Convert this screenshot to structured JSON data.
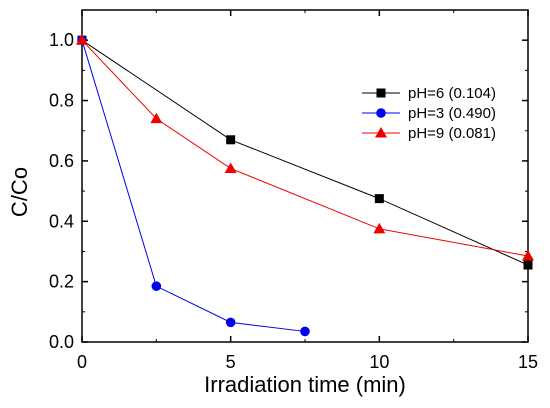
{
  "chart_data": {
    "type": "line",
    "title": "",
    "xlabel": "Irradiation time (min)",
    "ylabel": "C/Co",
    "xlim": [
      0,
      15
    ],
    "ylim": [
      0,
      1.1
    ],
    "xticks": [
      0,
      5,
      10,
      15
    ],
    "yticks": [
      0.0,
      0.2,
      0.4,
      0.6,
      0.8,
      1.0
    ],
    "xtick_labels": [
      "0",
      "5",
      "10",
      "15"
    ],
    "ytick_labels": [
      "0.0",
      "0.2",
      "0.4",
      "0.6",
      "0.8",
      "1.0"
    ],
    "grid": false,
    "legend_position": "top-right",
    "series": [
      {
        "name": "pH=6 (0.104)",
        "color": "#000000",
        "marker": "square",
        "x": [
          0,
          5,
          10,
          15
        ],
        "y": [
          1.0,
          0.67,
          0.475,
          0.255
        ]
      },
      {
        "name": "pH=3 (0.490)",
        "color": "#0000ee",
        "marker": "circle",
        "x": [
          0,
          2.5,
          5,
          7.5
        ],
        "y": [
          1.0,
          0.185,
          0.065,
          0.035
        ]
      },
      {
        "name": "pH=9 (0.081)",
        "color": "#ee0000",
        "marker": "triangle",
        "x": [
          0,
          2.5,
          5,
          10,
          15
        ],
        "y": [
          1.0,
          0.74,
          0.575,
          0.375,
          0.285
        ]
      }
    ]
  }
}
